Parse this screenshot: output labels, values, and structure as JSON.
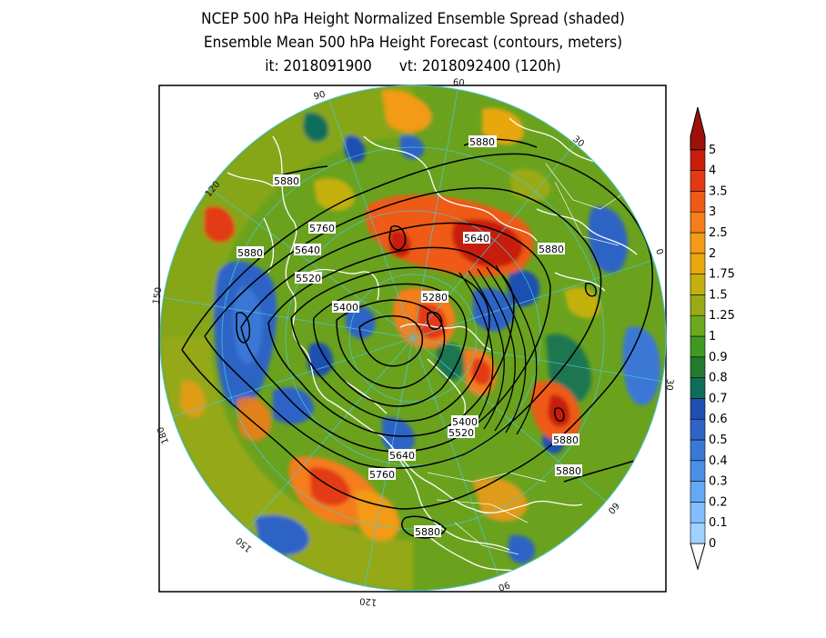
{
  "title": {
    "line1": "NCEP 500 hPa Height Normalized Ensemble Spread (shaded)",
    "line2": "Ensemble Mean 500 hPa Height Forecast (contours, meters)",
    "init": "it: 2018091900",
    "valid": "vt: 2018092400 (120h)"
  },
  "colorbar": {
    "levels": [
      "0",
      "0.1",
      "0.2",
      "0.3",
      "0.4",
      "0.5",
      "0.6",
      "0.7",
      "0.8",
      "0.9",
      "1",
      "1.25",
      "1.5",
      "1.75",
      "2",
      "2.5",
      "3",
      "3.5",
      "4",
      "5"
    ],
    "colors": [
      "#a0d2ff",
      "#82beff",
      "#64a9f5",
      "#4b8fe6",
      "#3a78d6",
      "#2f64c6",
      "#1f4fb0",
      "#0f6e5a",
      "#237a2f",
      "#3f9a22",
      "#6aaa1e",
      "#9aaa16",
      "#c3b00e",
      "#e8a70c",
      "#f39a18",
      "#f57d1a",
      "#ef5a18",
      "#e23a12",
      "#c81e0c",
      "#a0100a"
    ]
  },
  "contour_labels": [
    {
      "text": "5880"
    },
    {
      "text": "5880"
    },
    {
      "text": "5880"
    },
    {
      "text": "5880"
    },
    {
      "text": "5760"
    },
    {
      "text": "5640"
    },
    {
      "text": "5520"
    },
    {
      "text": "5400"
    },
    {
      "text": "5640"
    },
    {
      "text": "5880"
    },
    {
      "text": "5280"
    },
    {
      "text": "5400"
    },
    {
      "text": "5520"
    },
    {
      "text": "5640"
    },
    {
      "text": "5760"
    },
    {
      "text": "5880"
    },
    {
      "text": "5880"
    },
    {
      "text": "5880"
    }
  ],
  "grid_labels": {
    "lon": [
      "90",
      "60",
      "30",
      "0",
      "30",
      "60",
      "90",
      "120",
      "150",
      "180",
      "150",
      "120"
    ]
  }
}
